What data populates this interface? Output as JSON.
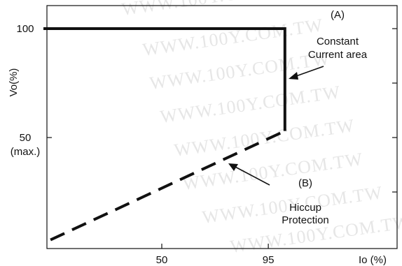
{
  "chart_data": {
    "type": "line",
    "title": "",
    "xlabel": "Io (%)",
    "ylabel": "Vo(%)",
    "xlim": [
      0,
      125
    ],
    "ylim": [
      0,
      112
    ],
    "x_ticks": [
      {
        "value": 50,
        "label": "50"
      },
      {
        "value": 95,
        "label": "95"
      }
    ],
    "y_ticks": [
      {
        "value": 100,
        "label": "100"
      },
      {
        "value": 50,
        "label": "50",
        "sublabel": "(max.)"
      }
    ],
    "series": [
      {
        "name": "Constant Current area",
        "style": "solid",
        "color": "#111111",
        "points": [
          [
            0,
            100
          ],
          [
            102,
            100
          ],
          [
            102,
            53
          ]
        ]
      },
      {
        "name": "Hiccup Protection",
        "style": "dashed",
        "color": "#111111",
        "points": [
          [
            3,
            3
          ],
          [
            102,
            53
          ]
        ]
      }
    ],
    "annotations": {
      "a_marker": "(A)",
      "a_line1": "Constant",
      "a_line2": "Current area",
      "b_marker": "(B)",
      "b_line1": "Hiccup",
      "b_line2": "Protection"
    },
    "watermark": "WWW.100Y.COM.TW",
    "grid": false
  }
}
